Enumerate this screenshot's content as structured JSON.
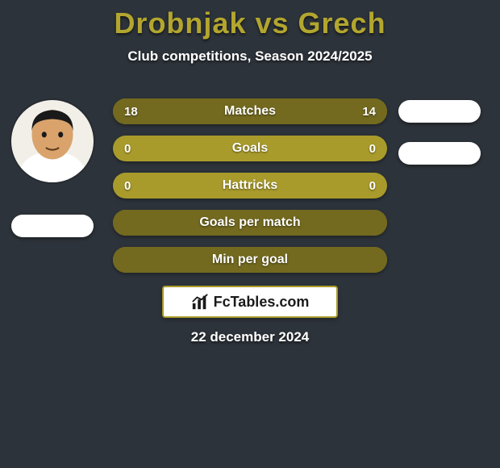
{
  "colors": {
    "background": "#2d333a",
    "title": "#b3a62e",
    "subtitle": "#ffffff",
    "bar_bg": "#a99b2b",
    "bar_fill": "#73691f",
    "bar_text": "#ffffff",
    "brand_box_bg": "#ffffff",
    "brand_box_border": "#a99b2b",
    "brand_text": "#1a1a1a",
    "date_text": "#ffffff",
    "flag_white": "#ffffff",
    "avatar_bg": "#f2efe9",
    "avatar_skin": "#d9a36b",
    "avatar_hair": "#1a1a1a",
    "avatar_shirt": "#ffffff"
  },
  "title": "Drobnjak vs Grech",
  "subtitle": "Club competitions, Season 2024/2025",
  "bars": [
    {
      "label": "Matches",
      "left": "18",
      "right": "14",
      "left_pct": 56,
      "right_pct": 44
    },
    {
      "label": "Goals",
      "left": "0",
      "right": "0",
      "left_pct": 0,
      "right_pct": 0
    },
    {
      "label": "Hattricks",
      "left": "0",
      "right": "0",
      "left_pct": 0,
      "right_pct": 0
    },
    {
      "label": "Goals per match",
      "left": "",
      "right": "",
      "left_pct": 100,
      "right_pct": 0
    },
    {
      "label": "Min per goal",
      "left": "",
      "right": "",
      "left_pct": 100,
      "right_pct": 0
    }
  ],
  "brand": "FcTables.com",
  "date": "22 december 2024",
  "players": {
    "left": {
      "name": "Drobnjak",
      "has_photo": true
    },
    "right": {
      "name": "Grech",
      "has_photo": false
    }
  }
}
